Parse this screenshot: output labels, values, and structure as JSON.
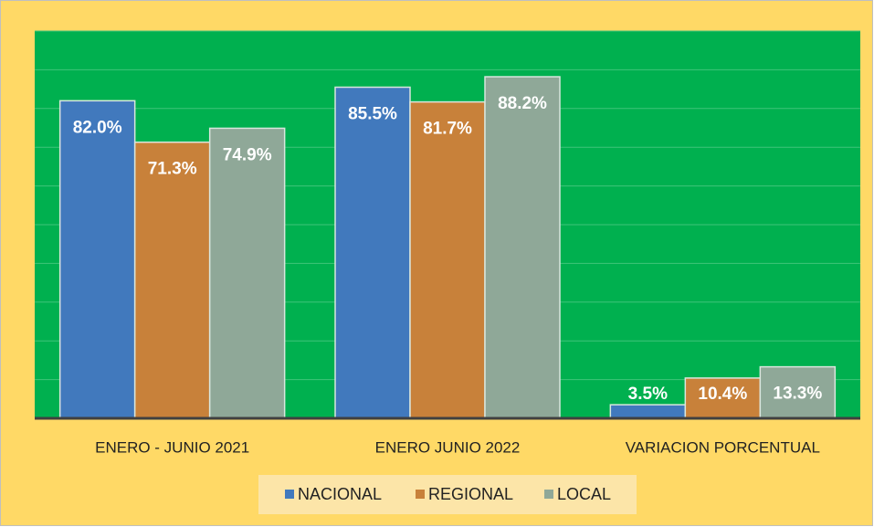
{
  "chart_data": {
    "type": "bar",
    "categories": [
      "ENERO - JUNIO 2021",
      "ENERO JUNIO 2022",
      "VARIACION PORCENTUAL"
    ],
    "series": [
      {
        "name": "NACIONAL",
        "color": "#4179bd",
        "values": [
          82.0,
          85.5,
          3.5
        ],
        "value_labels": [
          "82.0%",
          "85.5%",
          "3.5%"
        ]
      },
      {
        "name": "REGIONAL",
        "color": "#c8813a",
        "values": [
          71.3,
          81.7,
          10.4
        ],
        "value_labels": [
          "71.3%",
          "81.7%",
          "10.4%"
        ]
      },
      {
        "name": "LOCAL",
        "color": "#8fa898",
        "values": [
          74.9,
          88.2,
          13.3
        ],
        "value_labels": [
          "74.9%",
          "88.2%",
          "13.3%"
        ]
      }
    ],
    "ylim": [
      0,
      100
    ],
    "yticks": [
      0,
      10,
      20,
      30,
      40,
      50,
      60,
      70,
      80,
      90,
      100
    ],
    "grid": true,
    "legend": "bottom"
  }
}
